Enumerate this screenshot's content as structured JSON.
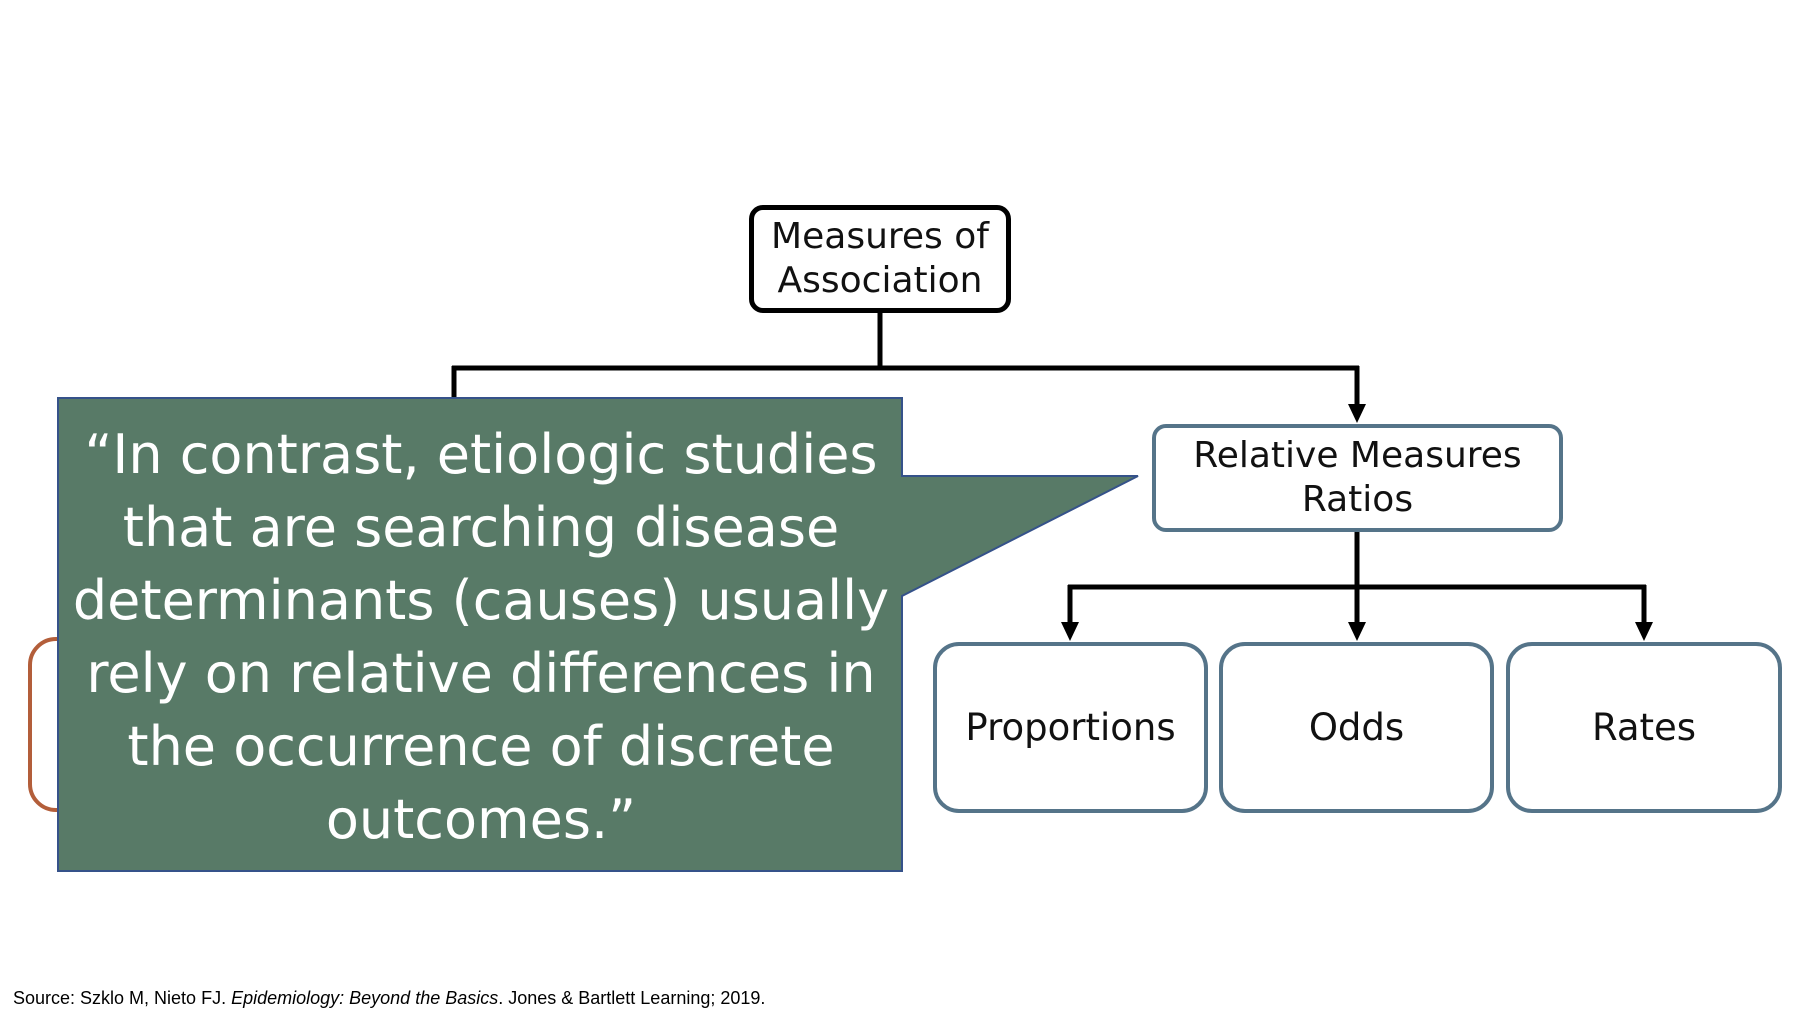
{
  "diagram": {
    "root": {
      "line1": "Measures of",
      "line2": "Association"
    },
    "relative": {
      "line1": "Relative Measures",
      "line2": "Ratios"
    },
    "children": {
      "proportions": "Proportions",
      "odds": "Odds",
      "rates": "Rates"
    }
  },
  "quote": {
    "text": "“In contrast, etiologic studies that are searching disease determinants (causes) usually rely on relative differences in the occurrence of discrete outcomes.”"
  },
  "source": {
    "prefix": "Source: Szklo M, Nieto FJ. ",
    "book": "Epidemiology: Beyond the Basics",
    "suffix": ". Jones & Bartlett Learning; 2019."
  },
  "colors": {
    "connector": "#000000",
    "box_border": "#557489",
    "root_border": "#000000",
    "callout_fill": "#587a67",
    "callout_edge": "#35528a",
    "hidden_box_border": "#b35e3a"
  }
}
